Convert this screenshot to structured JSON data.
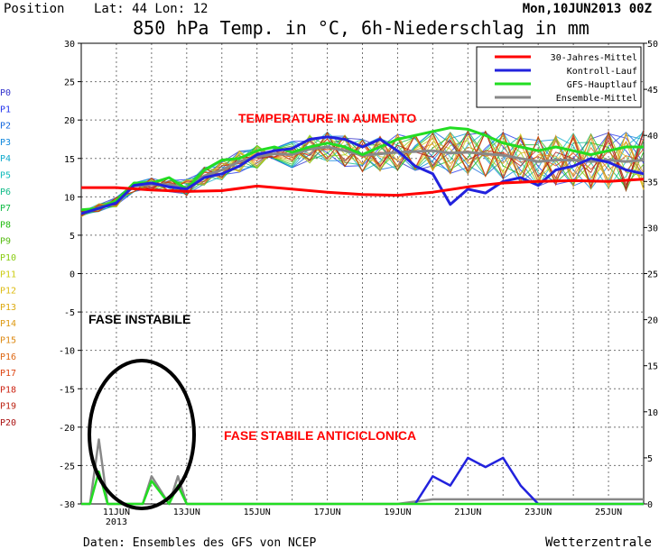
{
  "header": {
    "position_label": "Position",
    "coords": "Lat: 44 Lon: 12",
    "run": "Mon,10JUN2013 00Z",
    "title": "850 hPa Temp. in °C, 6h-Niederschlag in mm"
  },
  "footer": {
    "source": "Daten: Ensembles des GFS von NCEP",
    "brand": "Wetterzentrale"
  },
  "colors": {
    "clim": "#ff0000",
    "control": "#2222dd",
    "gfs": "#22dd22",
    "ensmean": "#888888",
    "annotation_red": "#ff0000",
    "annotation_black": "#000000"
  },
  "annotations": {
    "rise": "TEMPERATURE IN AUMENTO",
    "unstable": "FASE INSTABILE",
    "stable": "FASE STABILE ANTICICLONICA"
  },
  "chart_data": {
    "type": "line",
    "x_ticks": [
      "11JUN",
      "13JUN",
      "15JUN",
      "17JUN",
      "19JUN",
      "21JUN",
      "23JUN",
      "25JUN"
    ],
    "x_year_label": "2013",
    "x_range_days": [
      0,
      16
    ],
    "y_left": {
      "range": [
        -30,
        30
      ],
      "ticks": [
        "30",
        "25",
        "20",
        "15",
        "10",
        "5",
        "0",
        "-5",
        "-10",
        "-15",
        "-20",
        "-25",
        "-30"
      ]
    },
    "y_right": {
      "range": [
        0,
        50
      ],
      "ticks": [
        "50",
        "45",
        "40",
        "35",
        "30",
        "25",
        "20",
        "15",
        "10",
        "5",
        "0"
      ]
    },
    "members": [
      "P0",
      "P1",
      "P2",
      "P3",
      "P4",
      "P5",
      "P6",
      "P7",
      "P8",
      "P9",
      "P10",
      "P11",
      "P12",
      "P13",
      "P14",
      "P15",
      "P16",
      "P17",
      "P18",
      "P19",
      "P20"
    ],
    "member_colors": [
      "#3333cc",
      "#2233ee",
      "#1166dd",
      "#1188dd",
      "#11aacc",
      "#11bbbb",
      "#11bb88",
      "#11bb44",
      "#22bb11",
      "#55bb11",
      "#88cc11",
      "#cccc11",
      "#ddbb11",
      "#ddaa11",
      "#dd9911",
      "#dd8811",
      "#dd6611",
      "#dd4411",
      "#cc2211",
      "#bb2211",
      "#aa1111"
    ],
    "legend": [
      {
        "name": "30-Jahres-Mittel",
        "color": "#ff0000"
      },
      {
        "name": "Kontroll-Lauf",
        "color": "#2222dd"
      },
      {
        "name": "GFS-Hauptlauf",
        "color": "#22dd22"
      },
      {
        "name": "Ensemble-Mittel",
        "color": "#888888"
      }
    ],
    "series": [
      {
        "name": "30-Jahres-Mittel",
        "days": [
          0,
          1,
          2,
          3,
          4,
          5,
          6,
          7,
          8,
          9,
          10,
          11,
          12,
          13,
          14,
          15,
          16
        ],
        "values": [
          11.2,
          11.2,
          10.9,
          10.7,
          10.8,
          11.4,
          11.0,
          10.6,
          10.3,
          10.2,
          10.6,
          11.3,
          11.8,
          12.0,
          12.1,
          12.0,
          12.3
        ]
      },
      {
        "name": "GFS-Hauptlauf",
        "days": [
          0,
          0.5,
          1,
          1.5,
          2,
          2.5,
          3,
          3.5,
          4,
          4.5,
          5,
          5.5,
          6,
          6.5,
          7,
          7.5,
          8,
          8.5,
          9,
          9.5,
          10,
          10.5,
          11,
          11.5,
          12,
          12.5,
          13,
          13.5,
          14,
          14.5,
          15,
          15.5,
          16
        ],
        "values": [
          8.3,
          8.5,
          9.5,
          11.8,
          11.8,
          12.5,
          11.0,
          13.5,
          14.8,
          15.0,
          16.0,
          16.5,
          15.8,
          16.5,
          17.0,
          16.5,
          15.5,
          16.5,
          17.5,
          18.0,
          18.5,
          19.0,
          18.8,
          18.0,
          17.0,
          16.5,
          16.0,
          16.5,
          16.0,
          15.5,
          16.0,
          16.5,
          16.5
        ]
      },
      {
        "name": "Kontroll-Lauf",
        "days": [
          0,
          0.5,
          1,
          1.5,
          2,
          2.5,
          3,
          3.5,
          4,
          4.5,
          5,
          5.5,
          6,
          6.5,
          7,
          7.5,
          8,
          8.5,
          9,
          9.5,
          10,
          10.5,
          11,
          11.5,
          12,
          12.5,
          13,
          13.5,
          14,
          14.5,
          15,
          15.5,
          16
        ],
        "values": [
          7.8,
          8.5,
          9.2,
          11.5,
          11.8,
          11.3,
          11.0,
          12.5,
          13.0,
          14.0,
          15.5,
          16.0,
          16.3,
          17.5,
          17.8,
          17.5,
          16.5,
          17.5,
          16.0,
          14.0,
          13.0,
          9.0,
          11.0,
          10.5,
          12.0,
          12.5,
          11.5,
          13.5,
          14.0,
          15.0,
          14.5,
          13.5,
          13.0
        ]
      },
      {
        "name": "Ensemble-Mittel",
        "days": [
          0,
          0.5,
          1,
          1.5,
          2,
          2.5,
          3,
          3.5,
          4,
          4.5,
          5,
          5.5,
          6,
          6.5,
          7,
          7.5,
          8,
          8.5,
          9,
          9.5,
          10,
          10.5,
          11,
          11.5,
          12,
          12.5,
          13,
          13.5,
          14,
          14.5,
          15,
          15.5,
          16
        ],
        "values": [
          7.8,
          8.6,
          9.3,
          11.4,
          11.6,
          11.6,
          11.2,
          12.7,
          13.5,
          14.6,
          15.2,
          15.6,
          15.5,
          16.2,
          16.5,
          16.0,
          15.4,
          15.6,
          15.8,
          15.9,
          16.0,
          15.7,
          15.8,
          15.6,
          15.4,
          15.0,
          14.6,
          14.8,
          14.8,
          14.6,
          14.8,
          14.6,
          14.8
        ]
      }
    ],
    "precip_series": [
      {
        "name": "Ensemble-Mittel",
        "days": [
          0,
          0.25,
          0.5,
          0.75,
          1,
          1.5,
          1.75,
          2,
          2.5,
          2.75,
          3,
          3.25,
          4,
          5,
          6,
          6.5,
          7,
          7.5,
          8,
          9,
          10,
          11,
          12,
          13,
          14,
          15,
          15.5,
          16
        ],
        "values": [
          0,
          0,
          7,
          0,
          0,
          0,
          0,
          3,
          0,
          3,
          0,
          0,
          0,
          0,
          0,
          0,
          0,
          0,
          0,
          0,
          0.5,
          0.5,
          0.5,
          0.5,
          0.5,
          0.5,
          0.5,
          0.5
        ]
      },
      {
        "name": "Kontroll-Lauf",
        "days": [
          9.5,
          10,
          10.5,
          11,
          11.5,
          12,
          12.5,
          13,
          13.5,
          16
        ],
        "values": [
          0,
          3,
          2,
          5,
          4,
          5,
          2,
          0,
          0,
          0
        ]
      },
      {
        "name": "GFS-Hauptlauf",
        "days": [
          0,
          0.25,
          0.5,
          0.75,
          1,
          1.5,
          1.75,
          2,
          2.5,
          2.75,
          3,
          3.25,
          16
        ],
        "values": [
          0,
          0,
          3.5,
          0,
          0,
          0,
          0,
          2.5,
          0,
          2,
          0,
          0,
          0
        ]
      }
    ]
  }
}
